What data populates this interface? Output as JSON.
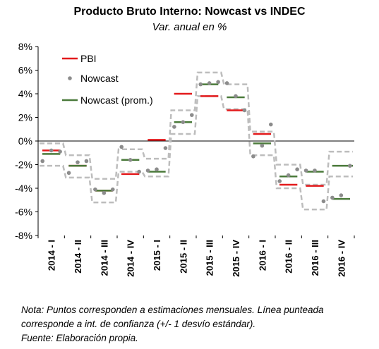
{
  "chart_data": {
    "type": "line",
    "title": "Producto Bruto Interno: Nowcast vs INDEC",
    "subtitle": "Var. anual en %",
    "categories": [
      "2014 - I",
      "2014 - II",
      "2014 - III",
      "2014 - IV",
      "2015 - I",
      "2015 - II",
      "2015 - III",
      "2015 - IV",
      "2016 - I",
      "2016 - II",
      "2016 - III",
      "2016 - IV"
    ],
    "yticks": [
      "8%",
      "6%",
      "4%",
      "2%",
      "0%",
      "-2%",
      "-4%",
      "-6%",
      "-8%"
    ],
    "ylim": [
      -8,
      8
    ],
    "legend_position": "top-left",
    "series": [
      {
        "name": "PBI",
        "color": "#e31a1c",
        "values": [
          -0.8,
          -2.1,
          -4.2,
          -2.8,
          0.1,
          4.0,
          3.8,
          2.6,
          0.6,
          -3.7,
          -3.8,
          null
        ]
      },
      {
        "name": "Nowcast",
        "color": "#8c8c8c",
        "monthly": [
          [
            -1.7,
            -0.8,
            -0.9
          ],
          [
            -2.7,
            -1.8,
            -1.7
          ],
          [
            -4.1,
            -4.4,
            -4.1
          ],
          [
            -0.5,
            -1.6,
            -2.6
          ],
          [
            -2.5,
            -2.4,
            -0.6
          ],
          [
            1.2,
            1.6,
            2.2
          ],
          [
            4.8,
            4.9,
            5.0
          ],
          [
            4.9,
            3.8,
            2.6
          ],
          [
            -1.3,
            -0.4,
            1.4
          ],
          [
            -3.4,
            -2.9,
            -2.4
          ],
          [
            -2.5,
            -2.5,
            -5.1
          ],
          [
            -4.8,
            -4.6,
            -2.1
          ]
        ]
      },
      {
        "name": "Nowcast (prom.)",
        "color": "#4a7a3a",
        "values": [
          -1.1,
          -2.1,
          -4.2,
          -1.6,
          -2.6,
          1.6,
          4.8,
          3.7,
          -0.2,
          -3.0,
          -2.6,
          -4.9
        ]
      }
    ],
    "post_series": [
      {
        "name": "Nowcast (prom.)",
        "values": [
          null,
          null,
          null,
          null,
          null,
          null,
          null,
          null,
          null,
          null,
          null,
          -2.1
        ]
      }
    ],
    "confidence_band": {
      "upper": [
        -0.2,
        -1.2,
        -3.2,
        -0.7,
        -1.5,
        2.6,
        5.8,
        4.8,
        0.8,
        -2.0,
        -3.7,
        -0.9
      ],
      "lower": [
        -2.1,
        -3.1,
        -5.2,
        -2.6,
        -3.0,
        0.6,
        3.8,
        2.7,
        -1.2,
        -4.0,
        -5.8,
        -3.0
      ]
    }
  },
  "notes": {
    "line1": "Nota: Puntos corresponden a estimaciones mensuales. Línea punteada",
    "line2": "corresponde a int. de confianza (+/- 1 desvío estándar).",
    "line3": "Fuente: Elaboración propia."
  }
}
